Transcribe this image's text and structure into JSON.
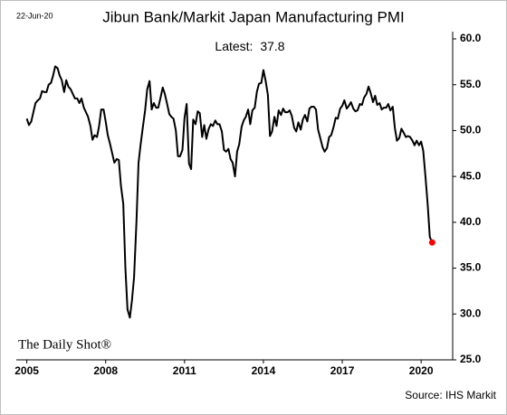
{
  "chart_data": {
    "type": "line",
    "title": "Jibun Bank/Markit Japan Manufacturing PMI",
    "date": "22-Jun-20",
    "latest_label": "Latest:",
    "watermark": "The Daily Shot®",
    "source": "Source: IHS Markit",
    "color": "#000000",
    "marker_color": "#ff0000",
    "xlim": [
      2004.6,
      2021.2
    ],
    "xticks": [
      2005,
      2008,
      2011,
      2014,
      2017,
      2020
    ],
    "ylim": [
      25,
      60
    ],
    "yticks": [
      {
        "value": 25,
        "label": "25.0"
      },
      {
        "value": 30,
        "label": "30.0"
      },
      {
        "value": 35,
        "label": "35.0"
      },
      {
        "value": 40,
        "label": "40.0"
      },
      {
        "value": 45,
        "label": "45.0"
      },
      {
        "value": 50,
        "label": "50.0"
      },
      {
        "value": 55,
        "label": "55.0"
      },
      {
        "value": 60,
        "label": "60.0"
      }
    ],
    "grid": false,
    "x": [
      2005.0,
      2005.08,
      2005.17,
      2005.25,
      2005.33,
      2005.42,
      2005.5,
      2005.58,
      2005.67,
      2005.75,
      2005.83,
      2005.92,
      2006.0,
      2006.08,
      2006.17,
      2006.25,
      2006.33,
      2006.42,
      2006.5,
      2006.58,
      2006.67,
      2006.75,
      2006.83,
      2006.92,
      2007.0,
      2007.08,
      2007.17,
      2007.25,
      2007.33,
      2007.42,
      2007.5,
      2007.58,
      2007.67,
      2007.75,
      2007.83,
      2007.92,
      2008.0,
      2008.08,
      2008.17,
      2008.25,
      2008.33,
      2008.42,
      2008.5,
      2008.58,
      2008.67,
      2008.75,
      2008.83,
      2008.92,
      2009.0,
      2009.08,
      2009.17,
      2009.25,
      2009.33,
      2009.42,
      2009.5,
      2009.58,
      2009.67,
      2009.75,
      2009.83,
      2009.92,
      2010.0,
      2010.08,
      2010.17,
      2010.25,
      2010.33,
      2010.42,
      2010.5,
      2010.58,
      2010.67,
      2010.75,
      2010.83,
      2010.92,
      2011.0,
      2011.08,
      2011.17,
      2011.25,
      2011.33,
      2011.42,
      2011.5,
      2011.58,
      2011.67,
      2011.75,
      2011.83,
      2011.92,
      2012.0,
      2012.08,
      2012.17,
      2012.25,
      2012.33,
      2012.42,
      2012.5,
      2012.58,
      2012.67,
      2012.75,
      2012.83,
      2012.92,
      2013.0,
      2013.08,
      2013.17,
      2013.25,
      2013.33,
      2013.42,
      2013.5,
      2013.58,
      2013.67,
      2013.75,
      2013.83,
      2013.92,
      2014.0,
      2014.08,
      2014.17,
      2014.25,
      2014.33,
      2014.42,
      2014.5,
      2014.58,
      2014.67,
      2014.75,
      2014.83,
      2014.92,
      2015.0,
      2015.08,
      2015.17,
      2015.25,
      2015.33,
      2015.42,
      2015.5,
      2015.58,
      2015.67,
      2015.75,
      2015.83,
      2015.92,
      2016.0,
      2016.08,
      2016.17,
      2016.25,
      2016.33,
      2016.42,
      2016.5,
      2016.58,
      2016.67,
      2016.75,
      2016.83,
      2016.92,
      2017.0,
      2017.08,
      2017.17,
      2017.25,
      2017.33,
      2017.42,
      2017.5,
      2017.58,
      2017.67,
      2017.75,
      2017.83,
      2017.92,
      2018.0,
      2018.08,
      2018.17,
      2018.25,
      2018.33,
      2018.42,
      2018.5,
      2018.58,
      2018.67,
      2018.75,
      2018.83,
      2018.92,
      2019.0,
      2019.08,
      2019.17,
      2019.25,
      2019.33,
      2019.42,
      2019.5,
      2019.58,
      2019.67,
      2019.75,
      2019.83,
      2019.92,
      2020.0,
      2020.08,
      2020.17,
      2020.25,
      2020.33,
      2020.42
    ],
    "values": [
      51.3,
      50.6,
      51.0,
      52.0,
      53.0,
      53.3,
      53.5,
      54.3,
      54.2,
      54.2,
      55.0,
      55.2,
      56.0,
      57.0,
      56.8,
      56.0,
      55.5,
      54.2,
      55.5,
      54.8,
      54.5,
      54.0,
      53.5,
      53.5,
      53.0,
      53.5,
      52.5,
      52.0,
      51.5,
      50.5,
      49.0,
      49.5,
      49.3,
      50.5,
      52.3,
      52.3,
      51.0,
      49.5,
      48.5,
      47.5,
      46.5,
      46.9,
      46.8,
      44.0,
      42.0,
      35.0,
      30.5,
      29.6,
      31.5,
      34.0,
      40.0,
      46.5,
      48.5,
      50.5,
      52.2,
      54.5,
      55.4,
      52.3,
      53.0,
      52.5,
      52.5,
      53.5,
      54.7,
      54.0,
      53.0,
      51.8,
      51.5,
      51.3,
      50.0,
      47.2,
      47.2,
      47.9,
      51.4,
      52.9,
      46.4,
      45.8,
      51.2,
      50.7,
      52.1,
      51.9,
      49.3,
      50.6,
      49.1,
      50.2,
      50.7,
      50.5,
      51.1,
      50.7,
      50.7,
      49.9,
      47.9,
      47.7,
      48.0,
      46.9,
      46.5,
      45.0,
      47.7,
      48.5,
      50.4,
      51.1,
      51.5,
      52.3,
      50.7,
      52.2,
      52.5,
      54.2,
      55.1,
      55.2,
      56.6,
      55.5,
      53.9,
      49.4,
      49.9,
      51.5,
      50.5,
      52.2,
      51.7,
      52.4,
      52.0,
      52.0,
      52.2,
      51.6,
      50.3,
      49.9,
      50.9,
      50.1,
      51.2,
      51.7,
      51.0,
      52.4,
      52.6,
      52.6,
      52.3,
      50.1,
      49.1,
      48.2,
      47.7,
      48.1,
      49.3,
      49.5,
      50.4,
      51.4,
      51.3,
      52.4,
      52.7,
      53.3,
      52.4,
      52.7,
      53.1,
      52.4,
      52.1,
      52.2,
      52.9,
      52.8,
      53.6,
      54.0,
      54.8,
      54.1,
      53.1,
      53.8,
      52.8,
      53.0,
      52.3,
      52.5,
      52.5,
      52.9,
      52.2,
      52.6,
      50.3,
      48.9,
      49.2,
      50.2,
      49.8,
      49.3,
      49.4,
      49.3,
      48.9,
      48.4,
      48.9,
      48.4,
      48.8,
      47.8,
      44.8,
      41.9,
      38.4,
      37.8
    ]
  }
}
